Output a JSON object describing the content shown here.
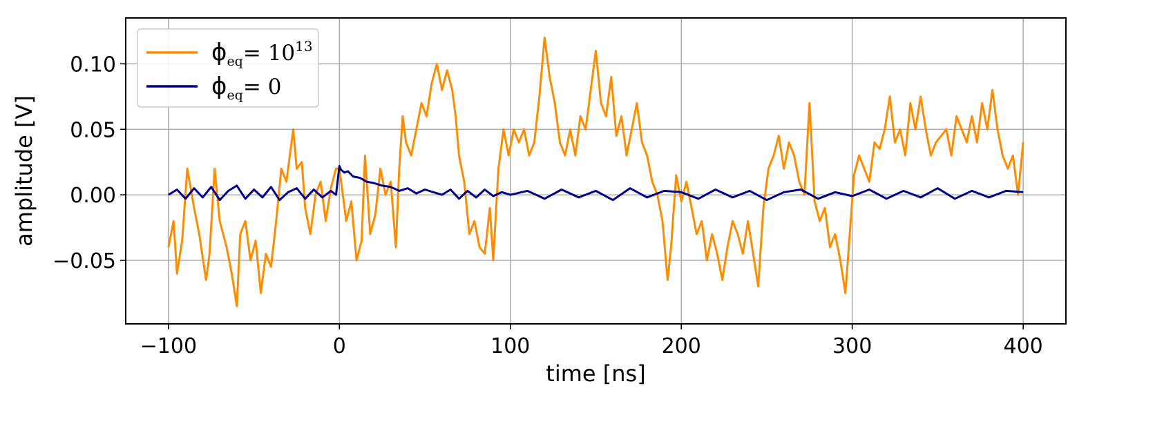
{
  "chart_data": {
    "type": "line",
    "xlabel": "time [ns]",
    "ylabel": "amplitude [V]",
    "xlim": [
      -125,
      425
    ],
    "ylim": [
      -0.0985,
      0.135
    ],
    "xticks": [
      -100,
      0,
      100,
      200,
      300,
      400
    ],
    "xtick_labels": [
      "−100",
      "0",
      "100",
      "200",
      "300",
      "400"
    ],
    "yticks": [
      -0.05,
      0.0,
      0.05,
      0.1
    ],
    "ytick_labels": [
      "−0.05",
      "0.00",
      "0.05",
      "0.10"
    ],
    "grid": true,
    "legend_position": "top-left",
    "series": [
      {
        "name": "ϕeq= 10^13",
        "label_symbol": "ϕ",
        "label_sub": "eq",
        "label_eq": "= 10",
        "label_sup": "13",
        "color": "#ff8c00",
        "x": [
          -100,
          -97,
          -95,
          -92,
          -89,
          -85,
          -82,
          -78,
          -76,
          -73,
          -70,
          -66,
          -63,
          -60,
          -58,
          -55,
          -52,
          -49,
          -46,
          -43,
          -40,
          -37,
          -34,
          -31,
          -27,
          -25,
          -22,
          -20,
          -17,
          -14,
          -11,
          -8,
          -5,
          -2,
          0,
          2,
          4,
          7,
          10,
          13,
          15,
          18,
          21,
          24,
          27,
          30,
          33,
          35,
          37,
          39,
          42,
          45,
          48,
          51,
          54,
          57,
          60,
          63,
          66,
          68,
          70,
          73,
          76,
          79,
          82,
          85,
          88,
          90,
          93,
          96,
          99,
          102,
          105,
          108,
          111,
          114,
          117,
          120,
          123,
          126,
          129,
          132,
          135,
          138,
          141,
          144,
          147,
          150,
          153,
          156,
          159,
          162,
          165,
          168,
          171,
          174,
          177,
          180,
          183,
          186,
          189,
          192,
          194,
          197,
          200,
          203,
          206,
          209,
          212,
          215,
          218,
          221,
          224,
          227,
          230,
          233,
          236,
          239,
          242,
          245,
          248,
          251,
          254,
          257,
          260,
          263,
          266,
          269,
          272,
          275,
          278,
          281,
          284,
          287,
          290,
          293,
          296,
          298,
          301,
          304,
          307,
          310,
          313,
          316,
          319,
          322,
          325,
          328,
          331,
          334,
          337,
          340,
          343,
          346,
          349,
          352,
          355,
          358,
          361,
          364,
          367,
          370,
          373,
          376,
          379,
          382,
          385,
          388,
          391,
          394,
          397,
          400
        ],
        "y": [
          -0.04,
          -0.02,
          -0.06,
          -0.035,
          0.02,
          -0.01,
          -0.03,
          -0.065,
          -0.045,
          0.02,
          -0.02,
          -0.04,
          -0.06,
          -0.085,
          -0.03,
          -0.02,
          -0.05,
          -0.035,
          -0.075,
          -0.045,
          -0.055,
          -0.02,
          0.02,
          0.01,
          0.05,
          0.02,
          0.025,
          -0.01,
          -0.03,
          0.0,
          0.01,
          -0.02,
          0.005,
          0.02,
          0.02,
          0.0,
          -0.02,
          -0.005,
          -0.05,
          -0.035,
          0.03,
          -0.03,
          -0.015,
          0.02,
          0.0,
          0.01,
          -0.04,
          0.02,
          0.06,
          0.04,
          0.03,
          0.05,
          0.07,
          0.06,
          0.085,
          0.1,
          0.08,
          0.095,
          0.08,
          0.06,
          0.03,
          0.01,
          -0.03,
          -0.02,
          -0.04,
          -0.045,
          -0.01,
          -0.05,
          0.02,
          0.05,
          0.03,
          0.05,
          0.04,
          0.05,
          0.03,
          0.04,
          0.075,
          0.12,
          0.09,
          0.07,
          0.04,
          0.03,
          0.05,
          0.03,
          0.06,
          0.05,
          0.08,
          0.11,
          0.07,
          0.06,
          0.09,
          0.045,
          0.06,
          0.03,
          0.05,
          0.07,
          0.04,
          0.03,
          0.01,
          0.0,
          -0.02,
          -0.065,
          -0.04,
          0.015,
          -0.005,
          0.01,
          -0.01,
          -0.03,
          -0.02,
          -0.05,
          -0.03,
          -0.045,
          -0.065,
          -0.04,
          -0.02,
          -0.03,
          -0.045,
          -0.02,
          -0.045,
          -0.07,
          -0.01,
          0.02,
          0.03,
          0.045,
          0.02,
          0.04,
          0.03,
          0.01,
          0.0,
          0.07,
          -0.005,
          -0.02,
          -0.01,
          -0.04,
          -0.03,
          -0.05,
          -0.075,
          -0.04,
          0.015,
          0.03,
          0.02,
          0.01,
          0.04,
          0.035,
          0.05,
          0.075,
          0.04,
          0.05,
          0.03,
          0.07,
          0.05,
          0.075,
          0.05,
          0.03,
          0.04,
          0.045,
          0.05,
          0.03,
          0.06,
          0.05,
          0.04,
          0.06,
          0.04,
          0.07,
          0.05,
          0.08,
          0.05,
          0.03,
          0.02,
          0.03,
          0.0,
          0.04
        ]
      },
      {
        "name": "ϕeq= 0",
        "label_symbol": "ϕ",
        "label_sub": "eq",
        "label_eq": "= 0",
        "label_sup": "",
        "color": "#00008b",
        "x": [
          -100,
          -95,
          -90,
          -85,
          -80,
          -75,
          -70,
          -65,
          -60,
          -55,
          -50,
          -45,
          -40,
          -35,
          -30,
          -25,
          -20,
          -15,
          -10,
          -5,
          -2,
          0,
          1,
          3,
          5,
          8,
          12,
          16,
          20,
          25,
          30,
          35,
          40,
          45,
          50,
          55,
          60,
          65,
          70,
          75,
          80,
          85,
          90,
          95,
          100,
          110,
          120,
          130,
          140,
          150,
          160,
          170,
          180,
          190,
          200,
          210,
          220,
          230,
          240,
          250,
          260,
          270,
          280,
          290,
          300,
          310,
          320,
          330,
          340,
          350,
          360,
          370,
          380,
          390,
          400
        ],
        "y": [
          0.0,
          0.004,
          -0.003,
          0.005,
          -0.002,
          0.006,
          -0.004,
          0.003,
          0.007,
          -0.003,
          0.004,
          -0.002,
          0.006,
          -0.004,
          0.002,
          0.005,
          -0.003,
          0.004,
          -0.002,
          0.003,
          0.0,
          0.022,
          0.019,
          0.017,
          0.018,
          0.014,
          0.013,
          0.01,
          0.009,
          0.007,
          0.006,
          0.003,
          0.005,
          0.001,
          0.004,
          0.002,
          0.0,
          0.004,
          -0.003,
          0.003,
          -0.002,
          0.004,
          -0.001,
          0.002,
          0.0,
          0.003,
          -0.003,
          0.004,
          -0.002,
          0.003,
          -0.004,
          0.005,
          -0.002,
          0.003,
          0.002,
          -0.003,
          0.004,
          -0.002,
          0.003,
          -0.004,
          0.002,
          0.004,
          -0.003,
          0.002,
          -0.001,
          0.004,
          -0.003,
          0.003,
          -0.002,
          0.005,
          -0.003,
          0.003,
          -0.002,
          0.003,
          0.002
        ]
      }
    ]
  }
}
